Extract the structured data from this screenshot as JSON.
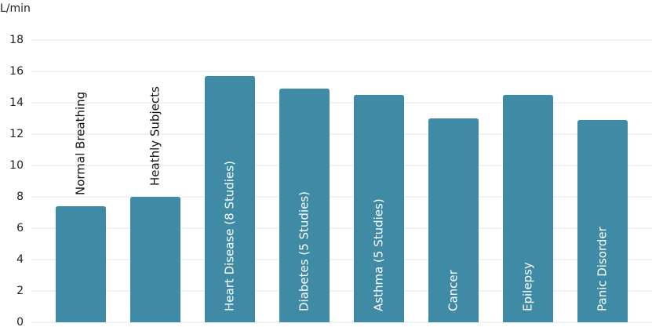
{
  "chart_data": {
    "type": "bar",
    "y_label": "L/min",
    "categories": [
      "Normal Breathing",
      "Heathly Subjects",
      "Heart Disease (8 Studies)",
      "Diabetes (5 Studies)",
      "Asthma (5 Studies)",
      "Cancer",
      "Epilepsy",
      "Panic Disorder"
    ],
    "values": [
      7.4,
      8,
      15.7,
      14.9,
      14.5,
      13,
      14.5,
      12.9
    ],
    "color": "#3f8ba6",
    "ylim": [
      0,
      18
    ],
    "yticks": [
      0,
      2,
      4,
      6,
      8,
      10,
      12,
      14,
      16,
      18
    ],
    "grid": true
  }
}
